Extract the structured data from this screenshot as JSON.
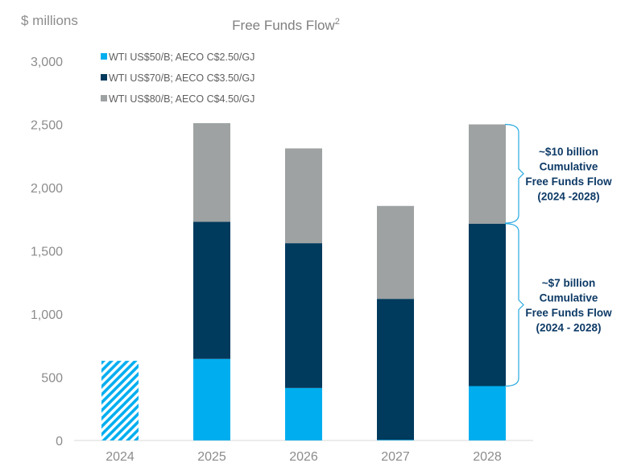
{
  "chart_data": {
    "type": "bar",
    "stacked": true,
    "title": "Free Funds Flow",
    "title_superscript": "2",
    "unit_label": "$ millions",
    "ylim": [
      0,
      3000
    ],
    "yticks": [
      "0",
      "500",
      "1,000",
      "1,500",
      "2,000",
      "2,500",
      "3,000"
    ],
    "ytick_values": [
      0,
      500,
      1000,
      1500,
      2000,
      2500,
      3000
    ],
    "categories": [
      "2024",
      "2025",
      "2026",
      "2027",
      "2028"
    ],
    "grid": false,
    "legend_position": "top-left",
    "colors": {
      "wti50": "#00aeef",
      "wti70": "#003a5d",
      "wti80": "#9ea2a2",
      "hatch": "#00aeef",
      "brace": "#29a9e0"
    },
    "series": [
      {
        "name": "WTI US$50/B; AECO C$2.50/GJ",
        "key": "wti50",
        "values": [
          630,
          645,
          415,
          5,
          430
        ]
      },
      {
        "name": "WTI US$70/B; AECO C$3.50/GJ",
        "key": "wti70",
        "values": [
          0,
          1085,
          1145,
          1115,
          1285
        ]
      },
      {
        "name": "WTI US$80/B; AECO C$4.50/GJ",
        "key": "wti80",
        "values": [
          0,
          780,
          750,
          735,
          785
        ]
      }
    ],
    "hatched_categories": [
      "2024"
    ],
    "annotations": [
      {
        "lines": [
          "~$10 billion",
          "Cumulative",
          "Free Funds Flow",
          "(2024 -2028)"
        ],
        "range": [
          1720,
          2500
        ]
      },
      {
        "lines": [
          "~$7 billion",
          "Cumulative",
          "Free Funds Flow",
          "(2024 - 2028)"
        ],
        "range": [
          430,
          1715
        ]
      }
    ]
  }
}
